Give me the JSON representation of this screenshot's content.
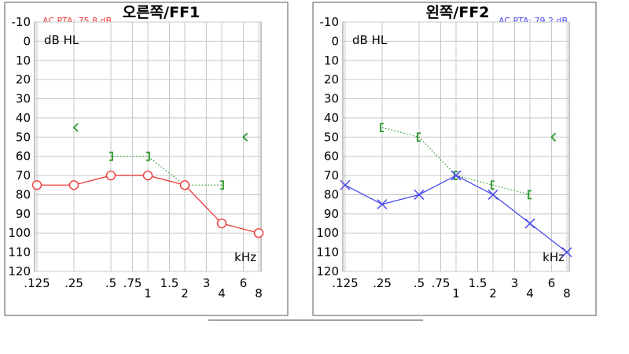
{
  "chart_data": [
    {
      "type": "line",
      "title": "오른쪽/FF1",
      "pta_label": "AC PTA: 75.8 dB",
      "accent_color": "#ee3b3b",
      "bc_color": "#2a9a2a",
      "ylabel": "dB HL",
      "xlabel": "kHz",
      "ylim": [
        -10,
        120
      ],
      "y_ticks": [
        -10,
        0,
        10,
        20,
        30,
        40,
        50,
        60,
        70,
        80,
        90,
        100,
        110,
        120
      ],
      "x_ticks": [
        {
          "label": ".125",
          "f": 0.125
        },
        {
          "label": ".25",
          "f": 0.25
        },
        {
          "label": ".5",
          "f": 0.5
        },
        {
          "label": ".75",
          "f": 0.75
        },
        {
          "label": "1",
          "f": 1
        },
        {
          "label": "1.5",
          "f": 1.5
        },
        {
          "label": "2",
          "f": 2
        },
        {
          "label": "3",
          "f": 3
        },
        {
          "label": "4",
          "f": 4
        },
        {
          "label": "6",
          "f": 6
        },
        {
          "label": "8",
          "f": 8
        }
      ],
      "air": {
        "symbol": "circle",
        "points": [
          [
            0.125,
            75
          ],
          [
            0.25,
            75
          ],
          [
            0.5,
            70
          ],
          [
            1,
            70
          ],
          [
            2,
            75
          ],
          [
            4,
            95
          ],
          [
            8,
            100
          ]
        ]
      },
      "bone": {
        "symbol": "bracket-right",
        "connected": [
          [
            0.5,
            60
          ],
          [
            1,
            60
          ],
          [
            2,
            75
          ],
          [
            4,
            75
          ]
        ],
        "isolated": [
          [
            0.25,
            45
          ],
          [
            6,
            50
          ]
        ]
      }
    },
    {
      "type": "line",
      "title": "왼쪽/FF2",
      "pta_label": "AC PTA: 79.2 dB",
      "accent_color": "#4a4aee",
      "bc_color": "#2a9a2a",
      "ylabel": "dB HL",
      "xlabel": "kHz",
      "ylim": [
        -10,
        120
      ],
      "y_ticks": [
        -10,
        0,
        10,
        20,
        30,
        40,
        50,
        60,
        70,
        80,
        90,
        100,
        110,
        120
      ],
      "x_ticks": [
        {
          "label": ".125",
          "f": 0.125
        },
        {
          "label": ".25",
          "f": 0.25
        },
        {
          "label": ".5",
          "f": 0.5
        },
        {
          "label": ".75",
          "f": 0.75
        },
        {
          "label": "1",
          "f": 1
        },
        {
          "label": "1.5",
          "f": 1.5
        },
        {
          "label": "2",
          "f": 2
        },
        {
          "label": "3",
          "f": 3
        },
        {
          "label": "4",
          "f": 4
        },
        {
          "label": "6",
          "f": 6
        },
        {
          "label": "8",
          "f": 8
        }
      ],
      "air": {
        "symbol": "cross",
        "points": [
          [
            0.125,
            75
          ],
          [
            0.25,
            85
          ],
          [
            0.5,
            80
          ],
          [
            1,
            70
          ],
          [
            2,
            80
          ],
          [
            4,
            95
          ],
          [
            8,
            110
          ]
        ]
      },
      "bone": {
        "symbol": "bracket-left",
        "connected": [
          [
            0.25,
            45
          ],
          [
            0.5,
            50
          ],
          [
            1,
            70
          ],
          [
            2,
            75
          ],
          [
            4,
            80
          ]
        ],
        "isolated": [
          [
            6,
            50
          ]
        ]
      }
    }
  ]
}
